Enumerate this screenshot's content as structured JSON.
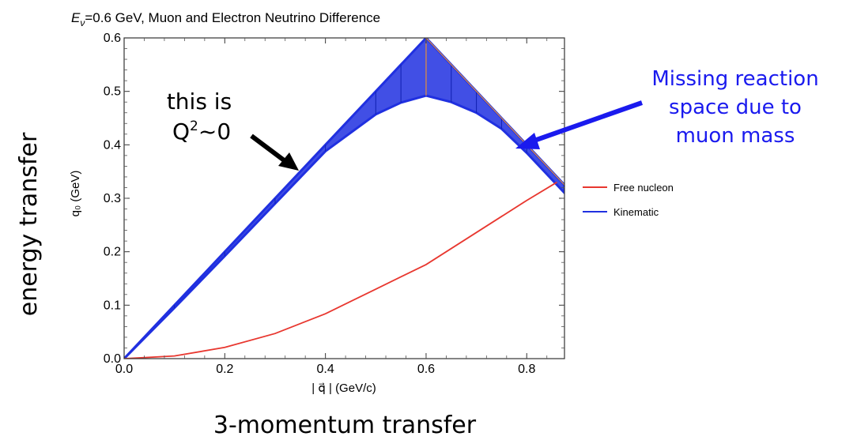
{
  "chart_data": {
    "type": "area",
    "title_prefix": "E",
    "title_subscript": "ν",
    "title_rest": "=0.6 GeV, Muon and Electron Neutrino Difference",
    "xlabel": "| q⃗ |  (GeV/c)",
    "ylabel": "q₀ (GeV)",
    "xlim": [
      0.0,
      0.875
    ],
    "ylim": [
      0.0,
      0.6
    ],
    "xticks": [
      "0.0",
      "0.2",
      "0.4",
      "0.6",
      "0.8"
    ],
    "yticks": [
      "0.0",
      "0.1",
      "0.2",
      "0.3",
      "0.4",
      "0.5",
      "0.6"
    ],
    "grid": false,
    "legend_position": "right",
    "series": [
      {
        "name": "Free nucleon",
        "color": "#e8372f",
        "x": [
          0.0,
          0.1,
          0.2,
          0.3,
          0.4,
          0.5,
          0.6,
          0.7,
          0.8,
          0.86
        ],
        "y": [
          0.0,
          0.005,
          0.021,
          0.047,
          0.084,
          0.13,
          0.176,
          0.236,
          0.296,
          0.33
        ]
      },
      {
        "name": "Kinematic",
        "color": "#2030e0",
        "band_x": [
          0.0,
          0.1,
          0.2,
          0.3,
          0.4,
          0.5,
          0.55,
          0.6,
          0.65,
          0.7,
          0.75,
          0.8,
          0.875
        ],
        "band_upper": [
          0.0,
          0.1,
          0.2,
          0.3,
          0.4,
          0.5,
          0.55,
          0.6,
          0.55,
          0.5,
          0.45,
          0.4,
          0.325
        ],
        "band_lower": [
          0.0,
          0.095,
          0.192,
          0.29,
          0.388,
          0.457,
          0.479,
          0.492,
          0.48,
          0.46,
          0.43,
          0.385,
          0.31
        ]
      }
    ]
  },
  "annotations": {
    "y_axis_caption": "energy transfer",
    "x_axis_caption": "3-momentum transfer",
    "q2_line1": "this is",
    "q2_line2_base": "Q",
    "q2_line2_sup": "2",
    "q2_line2_tail": "~0",
    "missing_line1": "Missing reaction",
    "missing_line2": "space due to",
    "missing_line3": "muon mass",
    "missing_color": "#1a1aee",
    "arrow_black": "#000000",
    "arrow_blue": "#1a1aee"
  }
}
